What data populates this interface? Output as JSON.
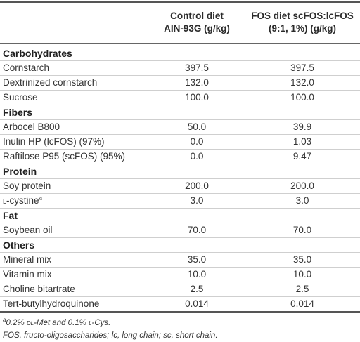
{
  "header": {
    "col1_line1": "Control diet",
    "col1_line2": "AIN-93G (g/kg)",
    "col2_line1": "FOS diet scFOS:lcFOS",
    "col2_line2": "(9:1, 1%) (g/kg)"
  },
  "rows": [
    {
      "type": "section",
      "label": "Carbohydrates"
    },
    {
      "type": "item",
      "label": "Cornstarch",
      "v1": "397.5",
      "v2": "397.5"
    },
    {
      "type": "item",
      "label": "Dextrinized cornstarch",
      "v1": "132.0",
      "v2": "132.0"
    },
    {
      "type": "item",
      "label": "Sucrose",
      "v1": "100.0",
      "v2": "100.0"
    },
    {
      "type": "section",
      "label": "Fibers"
    },
    {
      "type": "item",
      "label": "Arbocel B800",
      "v1": "50.0",
      "v2": "39.9"
    },
    {
      "type": "item",
      "label": "Inulin HP (lcFOS) (97%)",
      "v1": "0.0",
      "v2": "1.03"
    },
    {
      "type": "item",
      "label": "Raftilose P95 (scFOS) (95%)",
      "v1": "0.0",
      "v2": "9.47"
    },
    {
      "type": "section",
      "label": "Protein"
    },
    {
      "type": "item",
      "label": "Soy protein",
      "v1": "200.0",
      "v2": "200.0"
    },
    {
      "type": "item",
      "label": "-cystine",
      "prefix": "l",
      "sup": "a",
      "v1": "3.0",
      "v2": "3.0"
    },
    {
      "type": "section",
      "label": "Fat"
    },
    {
      "type": "item",
      "label": "Soybean oil",
      "v1": "70.0",
      "v2": "70.0"
    },
    {
      "type": "section",
      "label": "Others"
    },
    {
      "type": "item",
      "label": "Mineral mix",
      "v1": "35.0",
      "v2": "35.0"
    },
    {
      "type": "item",
      "label": "Vitamin mix",
      "v1": "10.0",
      "v2": "10.0"
    },
    {
      "type": "item",
      "label": "Choline bitartrate",
      "v1": "2.5",
      "v2": "2.5"
    },
    {
      "type": "item",
      "label": "Tert-butylhydroquinone",
      "v1": "0.014",
      "v2": "0.014"
    }
  ],
  "footnotes": {
    "a_marker": "a",
    "a_part1": "0.2% ",
    "a_dl": "dl",
    "a_part2": "-Met and 0.1% ",
    "a_l": "l",
    "a_part3": "-Cys.",
    "abbrev": "FOS, fructo-oligosaccharides; lc, long chain; sc, short chain."
  }
}
